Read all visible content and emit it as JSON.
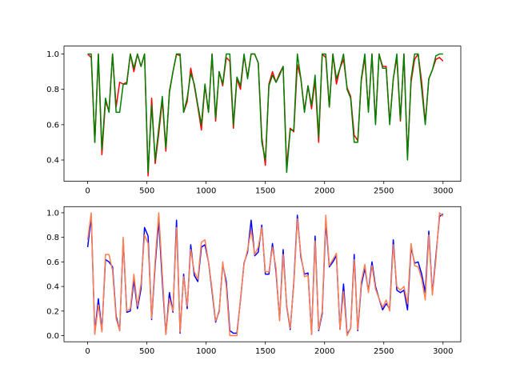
{
  "chart_data": [
    {
      "type": "line",
      "title": "",
      "xlabel": "",
      "ylabel": "",
      "xlim": [
        -200,
        3150
      ],
      "ylim": [
        0.28,
        1.045
      ],
      "xticks": [
        0,
        500,
        1000,
        1500,
        2000,
        2500,
        3000
      ],
      "xtick_labels": [
        "0",
        "500",
        "1000",
        "1500",
        "2000",
        "2500",
        "3000"
      ],
      "yticks": [
        0.4,
        0.6,
        0.8,
        1.0
      ],
      "ytick_labels": [
        "0.4",
        "0.6",
        "0.8",
        "1.0"
      ],
      "grid": false,
      "legend": "none",
      "x": [
        0,
        30,
        60,
        90,
        120,
        150,
        180,
        210,
        240,
        270,
        300,
        330,
        360,
        390,
        420,
        450,
        480,
        510,
        540,
        570,
        600,
        630,
        660,
        690,
        720,
        750,
        780,
        810,
        840,
        870,
        900,
        930,
        960,
        990,
        1020,
        1050,
        1080,
        1110,
        1140,
        1170,
        1200,
        1230,
        1260,
        1290,
        1320,
        1350,
        1380,
        1410,
        1440,
        1470,
        1500,
        1530,
        1560,
        1590,
        1620,
        1650,
        1680,
        1710,
        1740,
        1770,
        1800,
        1830,
        1860,
        1890,
        1920,
        1950,
        1980,
        2010,
        2040,
        2070,
        2100,
        2130,
        2160,
        2190,
        2220,
        2250,
        2280,
        2310,
        2340,
        2370,
        2400,
        2430,
        2460,
        2490,
        2520,
        2550,
        2580,
        2610,
        2640,
        2670,
        2700,
        2730,
        2760,
        2790,
        2820,
        2850,
        2880,
        2910,
        2940,
        2970,
        3000
      ],
      "series": [
        {
          "color": "#ff0000",
          "values": [
            1.0,
            0.98,
            0.5,
            1.0,
            0.43,
            0.73,
            0.68,
            1.0,
            0.7,
            0.84,
            0.83,
            0.84,
            1.0,
            0.9,
            1.0,
            0.93,
            1.0,
            0.31,
            0.75,
            0.38,
            0.55,
            0.74,
            0.45,
            0.79,
            0.9,
            1.0,
            0.99,
            0.67,
            0.73,
            0.92,
            0.82,
            0.7,
            0.57,
            0.82,
            0.67,
            1.0,
            0.62,
            0.9,
            0.82,
            0.98,
            0.96,
            0.58,
            0.86,
            0.8,
            0.99,
            0.87,
            1.0,
            1.0,
            0.95,
            0.53,
            0.37,
            0.83,
            0.9,
            0.84,
            0.89,
            0.93,
            0.36,
            0.58,
            0.56,
            0.94,
            0.86,
            0.68,
            0.82,
            0.69,
            0.85,
            0.5,
            1.0,
            0.98,
            0.7,
            1.0,
            0.83,
            0.92,
            0.97,
            0.81,
            0.76,
            0.54,
            0.51,
            0.85,
            0.98,
            0.68,
            1.0,
            0.61,
            1.0,
            0.93,
            0.93,
            0.61,
            0.86,
            0.98,
            0.62,
            1.0,
            0.42,
            0.84,
            0.97,
            1.0,
            0.84,
            0.61,
            0.86,
            0.91,
            0.97,
            0.98,
            0.96
          ],
          "name": ""
        },
        {
          "color": "#008000",
          "values": [
            1.0,
            1.0,
            0.5,
            1.0,
            0.46,
            0.75,
            0.67,
            1.0,
            0.67,
            0.67,
            0.83,
            0.83,
            1.0,
            0.92,
            1.0,
            0.93,
            1.0,
            0.33,
            0.71,
            0.4,
            0.58,
            0.76,
            0.47,
            0.78,
            0.9,
            1.0,
            1.0,
            0.67,
            0.75,
            0.89,
            0.83,
            0.71,
            0.6,
            0.83,
            0.67,
            1.0,
            0.64,
            0.9,
            0.83,
            1.0,
            1.0,
            0.6,
            0.87,
            0.82,
            1.0,
            0.86,
            1.0,
            1.0,
            0.95,
            0.5,
            0.4,
            0.82,
            0.88,
            0.84,
            0.88,
            0.93,
            0.33,
            0.57,
            0.57,
            1.0,
            0.86,
            0.67,
            0.82,
            0.71,
            0.88,
            0.53,
            1.0,
            1.0,
            0.7,
            1.0,
            0.86,
            0.92,
            1.0,
            0.8,
            0.75,
            0.5,
            0.5,
            0.86,
            1.0,
            0.67,
            1.0,
            0.6,
            1.0,
            0.92,
            0.92,
            0.6,
            0.86,
            1.0,
            0.63,
            1.0,
            0.4,
            0.86,
            1.0,
            1.0,
            0.8,
            0.6,
            0.86,
            0.91,
            0.99,
            1.0,
            1.0
          ],
          "name": ""
        }
      ]
    },
    {
      "type": "line",
      "title": "",
      "xlabel": "",
      "ylabel": "",
      "xlim": [
        -200,
        3150
      ],
      "ylim": [
        -0.05,
        1.05
      ],
      "xticks": [
        0,
        500,
        1000,
        1500,
        2000,
        2500,
        3000
      ],
      "xtick_labels": [
        "0",
        "500",
        "1000",
        "1500",
        "2000",
        "2500",
        "3000"
      ],
      "yticks": [
        0.0,
        0.2,
        0.4,
        0.6,
        0.8,
        1.0
      ],
      "ytick_labels": [
        "0.0",
        "0.2",
        "0.4",
        "0.6",
        "0.8",
        "1.0"
      ],
      "grid": false,
      "legend": "none",
      "x": [
        0,
        30,
        60,
        90,
        120,
        150,
        180,
        210,
        240,
        270,
        300,
        330,
        360,
        390,
        420,
        450,
        480,
        510,
        540,
        570,
        600,
        630,
        660,
        690,
        720,
        750,
        780,
        810,
        840,
        870,
        900,
        930,
        960,
        990,
        1020,
        1050,
        1080,
        1110,
        1140,
        1170,
        1200,
        1230,
        1260,
        1290,
        1320,
        1350,
        1380,
        1410,
        1440,
        1470,
        1500,
        1530,
        1560,
        1590,
        1620,
        1650,
        1680,
        1710,
        1740,
        1770,
        1800,
        1830,
        1860,
        1890,
        1920,
        1950,
        1980,
        2010,
        2040,
        2070,
        2100,
        2130,
        2160,
        2190,
        2220,
        2250,
        2280,
        2310,
        2340,
        2370,
        2400,
        2430,
        2460,
        2490,
        2520,
        2550,
        2580,
        2610,
        2640,
        2670,
        2700,
        2730,
        2760,
        2790,
        2820,
        2850,
        2880,
        2910,
        2940,
        2970,
        3000
      ],
      "series": [
        {
          "color": "#0000ff",
          "values": [
            0.72,
            0.97,
            0.02,
            0.3,
            0.04,
            0.62,
            0.6,
            0.56,
            0.16,
            0.04,
            0.78,
            0.19,
            0.2,
            0.45,
            0.22,
            0.38,
            0.88,
            0.81,
            0.13,
            0.58,
            0.94,
            0.44,
            0.01,
            0.35,
            0.19,
            0.94,
            0.02,
            0.5,
            0.22,
            0.74,
            0.49,
            0.44,
            0.72,
            0.74,
            0.6,
            0.36,
            0.11,
            0.2,
            0.58,
            0.44,
            0.04,
            0.02,
            0.02,
            0.29,
            0.59,
            0.68,
            0.94,
            0.65,
            0.68,
            0.9,
            0.5,
            0.5,
            0.75,
            0.52,
            0.13,
            0.7,
            0.24,
            0.05,
            0.43,
            0.98,
            0.64,
            0.5,
            0.51,
            0.01,
            0.81,
            0.04,
            0.18,
            0.93,
            0.56,
            0.6,
            0.65,
            0.05,
            0.42,
            0.01,
            0.06,
            0.66,
            0.04,
            0.41,
            0.55,
            0.36,
            0.6,
            0.4,
            0.3,
            0.21,
            0.26,
            0.22,
            0.78,
            0.37,
            0.35,
            0.37,
            0.21,
            0.72,
            0.59,
            0.6,
            0.5,
            0.35,
            0.85,
            0.34,
            0.65,
            0.97,
            0.99
          ],
          "name": ""
        },
        {
          "color": "#ff7f50",
          "values": [
            0.78,
            1.0,
            0.01,
            0.25,
            0.03,
            0.66,
            0.66,
            0.53,
            0.14,
            0.04,
            0.8,
            0.2,
            0.22,
            0.5,
            0.24,
            0.42,
            0.82,
            0.75,
            0.14,
            0.62,
            1.0,
            0.5,
            0.01,
            0.3,
            0.2,
            0.88,
            0.03,
            0.48,
            0.24,
            0.7,
            0.52,
            0.46,
            0.76,
            0.78,
            0.6,
            0.38,
            0.12,
            0.19,
            0.6,
            0.4,
            0.0,
            0.0,
            0.0,
            0.3,
            0.58,
            0.7,
            0.86,
            0.66,
            0.72,
            0.88,
            0.52,
            0.52,
            0.72,
            0.55,
            0.12,
            0.66,
            0.25,
            0.06,
            0.41,
            0.95,
            0.66,
            0.48,
            0.49,
            0.01,
            0.77,
            0.05,
            0.2,
            0.98,
            0.57,
            0.62,
            0.67,
            0.05,
            0.36,
            0.0,
            0.06,
            0.62,
            0.05,
            0.44,
            0.58,
            0.35,
            0.57,
            0.38,
            0.3,
            0.23,
            0.29,
            0.2,
            0.74,
            0.4,
            0.37,
            0.4,
            0.26,
            0.75,
            0.57,
            0.56,
            0.46,
            0.29,
            0.82,
            0.33,
            0.62,
            1.0,
            0.97
          ],
          "name": ""
        }
      ]
    }
  ]
}
